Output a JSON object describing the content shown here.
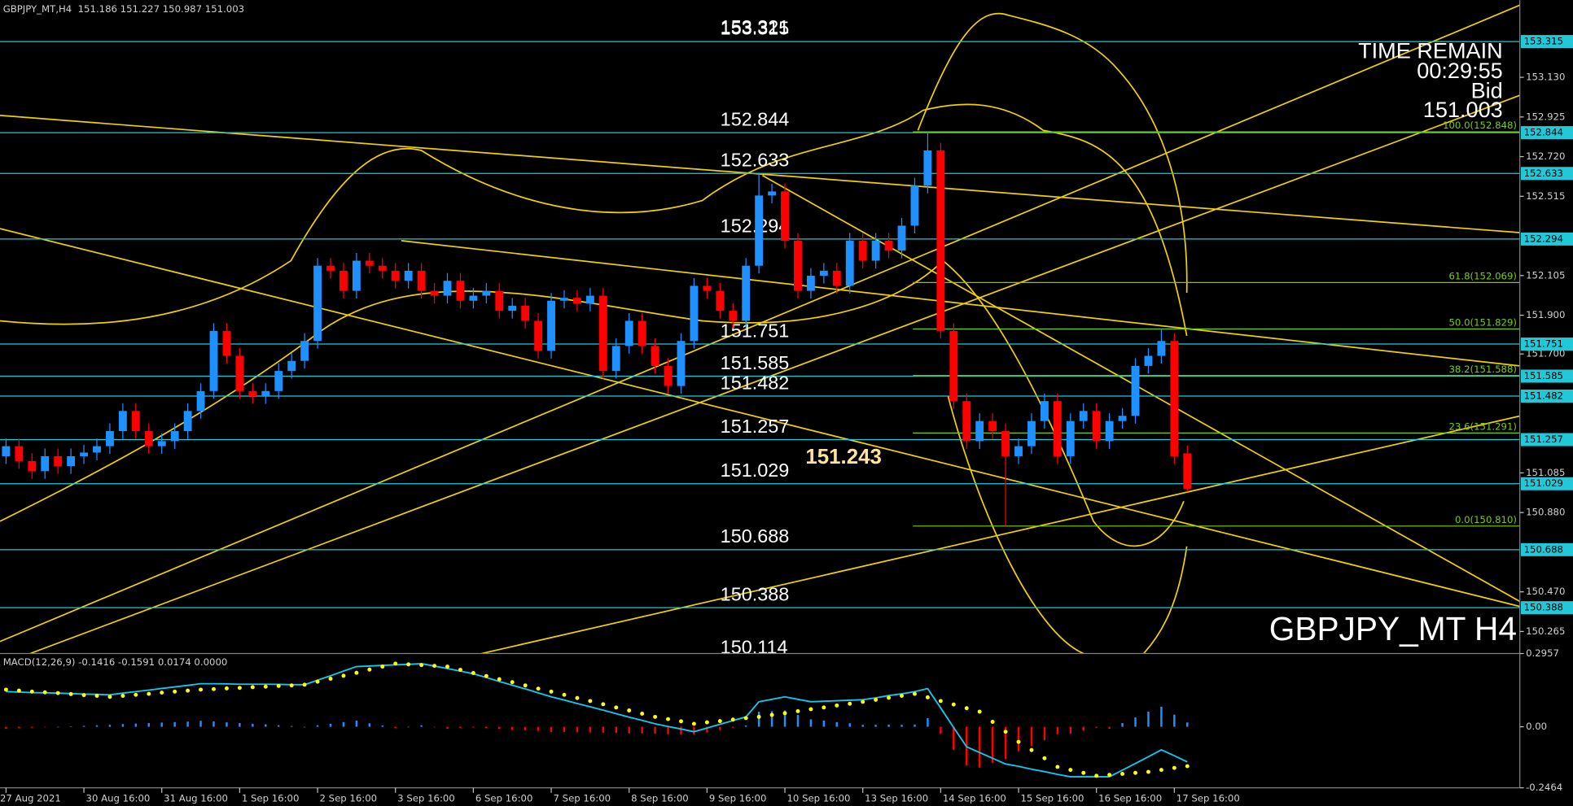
{
  "chart_data": [
    {
      "type": "candlestick",
      "title": "GBPJPY_MT,H4  151.186 151.227 150.987 151.003",
      "info": {
        "time_remain": "TIME REMAIN",
        "countdown": "00:29:55",
        "bid_label": "Bid",
        "bid": 151.003
      },
      "watermark": "GBPJPY_MT H4",
      "categories": [
        "27 Aug 2021",
        null,
        null,
        null,
        null,
        null,
        "30 Aug 16:00",
        null,
        null,
        null,
        null,
        null,
        "31 Aug 16:00",
        null,
        null,
        null,
        null,
        null,
        "1 Sep 16:00",
        null,
        null,
        null,
        null,
        null,
        "2 Sep 16:00",
        null,
        null,
        null,
        null,
        null,
        "3 Sep 16:00",
        null,
        null,
        null,
        null,
        null,
        "6 Sep 16:00",
        null,
        null,
        null,
        null,
        null,
        "7 Sep 16:00",
        null,
        null,
        null,
        null,
        null,
        "8 Sep 16:00",
        null,
        null,
        null,
        null,
        null,
        "9 Sep 16:00",
        null,
        null,
        null,
        null,
        null,
        "10 Sep 16:00",
        null,
        null,
        null,
        null,
        null,
        "13 Sep 16:00",
        null,
        null,
        null,
        null,
        null,
        "14 Sep 16:00",
        null,
        null,
        null,
        null,
        null,
        "15 Sep 16:00",
        null,
        null,
        null,
        null,
        null,
        "16 Sep 16:00",
        null,
        null,
        null,
        null,
        null,
        "17 Sep 16:00",
        null
      ],
      "open": [
        151.171,
        151.223,
        151.146,
        151.094,
        151.171,
        151.12,
        151.171,
        151.19,
        151.223,
        151.301,
        151.405,
        151.301,
        151.223,
        151.249,
        151.301,
        151.405,
        151.508,
        151.819,
        151.69,
        151.508,
        151.482,
        151.508,
        151.612,
        151.664,
        151.767,
        152.156,
        152.13,
        152.026,
        152.182,
        152.156,
        152.13,
        152.078,
        152.13,
        152.026,
        152.001,
        152.078,
        151.975,
        152.001,
        152.026,
        151.923,
        151.949,
        151.871,
        151.716,
        151.975,
        151.99,
        151.96,
        152.001,
        151.612,
        151.741,
        151.871,
        151.741,
        151.638,
        151.534,
        151.767,
        152.052,
        152.026,
        151.923,
        151.871,
        152.156,
        152.519,
        152.54,
        152.285,
        152.026,
        152.104,
        152.13,
        152.052,
        152.285,
        152.182,
        152.285,
        152.234,
        152.363,
        152.57,
        152.752,
        151.819,
        151.456,
        151.249,
        151.353,
        151.301,
        151.171,
        151.223,
        151.353,
        151.456,
        151.171,
        151.353,
        151.405,
        151.249,
        151.353,
        151.38,
        151.638,
        151.69,
        151.767,
        151.186
      ],
      "high": [
        151.263,
        151.263,
        151.186,
        151.211,
        151.211,
        151.211,
        151.23,
        151.263,
        151.341,
        151.445,
        151.445,
        151.341,
        151.289,
        151.341,
        151.445,
        151.548,
        151.859,
        151.859,
        151.73,
        151.548,
        151.548,
        151.652,
        151.704,
        151.807,
        152.196,
        152.196,
        152.17,
        152.222,
        152.222,
        152.196,
        152.17,
        152.17,
        152.17,
        152.066,
        152.118,
        152.118,
        152.041,
        152.066,
        152.066,
        151.989,
        151.989,
        151.911,
        152.015,
        152.03,
        152.03,
        152.041,
        152.041,
        151.781,
        151.911,
        151.911,
        151.781,
        151.678,
        151.807,
        152.092,
        152.092,
        152.066,
        151.963,
        152.196,
        152.633,
        152.58,
        152.58,
        152.325,
        152.144,
        152.17,
        152.17,
        152.325,
        152.325,
        152.325,
        152.325,
        152.403,
        152.61,
        152.848,
        152.792,
        151.859,
        151.496,
        151.393,
        151.393,
        151.341,
        151.263,
        151.393,
        151.496,
        151.496,
        151.393,
        151.445,
        151.445,
        151.393,
        151.42,
        151.678,
        151.73,
        151.829,
        151.807,
        151.227
      ],
      "low": [
        151.131,
        151.106,
        151.054,
        151.054,
        151.08,
        151.08,
        151.131,
        151.15,
        151.183,
        151.261,
        151.261,
        151.183,
        151.183,
        151.209,
        151.261,
        151.365,
        151.468,
        151.65,
        151.468,
        151.442,
        151.442,
        151.468,
        151.572,
        151.624,
        151.727,
        152.09,
        151.986,
        151.986,
        152.116,
        152.09,
        152.038,
        152.038,
        151.986,
        151.961,
        151.961,
        151.935,
        151.935,
        151.961,
        151.883,
        151.883,
        151.831,
        151.676,
        151.676,
        151.935,
        151.92,
        151.92,
        151.572,
        151.572,
        151.701,
        151.701,
        151.598,
        151.494,
        151.494,
        151.727,
        151.986,
        151.883,
        151.831,
        151.831,
        152.116,
        152.479,
        152.245,
        151.986,
        151.986,
        152.064,
        152.012,
        152.012,
        152.142,
        152.142,
        152.194,
        152.194,
        152.323,
        152.53,
        151.779,
        151.416,
        151.209,
        151.209,
        151.261,
        150.81,
        151.131,
        151.183,
        151.313,
        151.131,
        151.131,
        151.313,
        151.209,
        151.209,
        151.313,
        151.34,
        151.598,
        151.65,
        151.131,
        150.987
      ],
      "close": [
        151.223,
        151.146,
        151.094,
        151.171,
        151.12,
        151.171,
        151.19,
        151.223,
        151.301,
        151.405,
        151.301,
        151.223,
        151.249,
        151.301,
        151.405,
        151.508,
        151.819,
        151.69,
        151.508,
        151.482,
        151.508,
        151.612,
        151.664,
        151.767,
        152.156,
        152.13,
        152.026,
        152.182,
        152.156,
        152.13,
        152.078,
        152.13,
        152.026,
        152.001,
        152.078,
        151.975,
        152.001,
        152.026,
        151.923,
        151.949,
        151.871,
        151.716,
        151.975,
        151.99,
        151.96,
        152.001,
        151.612,
        151.741,
        151.871,
        151.741,
        151.638,
        151.534,
        151.767,
        152.052,
        152.026,
        151.923,
        151.871,
        152.156,
        152.519,
        152.54,
        152.285,
        152.026,
        152.104,
        152.13,
        152.052,
        152.285,
        152.182,
        152.285,
        152.234,
        152.363,
        152.57,
        152.752,
        151.819,
        151.456,
        151.249,
        151.353,
        151.301,
        151.171,
        151.223,
        151.353,
        151.456,
        151.171,
        151.353,
        151.405,
        151.249,
        151.353,
        151.38,
        151.638,
        151.69,
        151.767,
        151.171,
        151.003
      ],
      "up_color": "#1e90ff",
      "down_color": "#ff0000",
      "ylim": [
        150.151,
        153.529
      ],
      "yticks": [
        {
          "value": 153.13,
          "label": "153.130"
        },
        152.925,
        {
          "value": 152.72,
          "label": "152.720"
        },
        152.515,
        152.105,
        {
          "value": 151.9,
          "label": "151.900"
        },
        {
          "value": 151.7,
          "label": "151.700"
        },
        151.085,
        {
          "value": 150.88,
          "label": "150.880"
        },
        {
          "value": 150.47,
          "label": "150.470"
        },
        150.265
      ],
      "levels": [
        153.315,
        152.844,
        152.633,
        152.294,
        151.751,
        151.585,
        151.482,
        151.257,
        151.029,
        150.688,
        150.388
      ],
      "level_color": "#20c8d8",
      "extra_labels": [
        153.321,
        150.114
      ],
      "highlight_label": 151.243,
      "fibonacci": [
        {
          "value": 152.848,
          "label": "100.0(152.848)"
        },
        {
          "value": 152.069,
          "label": "61.8(152.069)"
        },
        {
          "value": 151.829,
          "label": "50.0(151.829)"
        },
        {
          "value": 151.588,
          "label": "38.2(151.588)"
        },
        {
          "value": 151.291,
          "label": "23.6(151.291)"
        },
        {
          "value": 150.81,
          "label": "0.0(150.810)"
        }
      ],
      "fib_color": "#7ccf00"
    },
    {
      "type": "macd",
      "title": "MACD(12,26,9) -0.1416 -0.1591 0.0174 0.0000",
      "macd": [
        0.142,
        0.14,
        0.138,
        0.137,
        0.136,
        0.134,
        0.132,
        0.131,
        0.129,
        0.136,
        0.142,
        0.148,
        0.155,
        0.161,
        0.167,
        0.174,
        0.174,
        0.173,
        0.172,
        0.172,
        0.172,
        0.171,
        0.17,
        0.17,
        0.188,
        0.206,
        0.225,
        0.243,
        0.245,
        0.248,
        0.25,
        0.252,
        0.255,
        0.245,
        0.235,
        0.225,
        0.214,
        0.199,
        0.183,
        0.168,
        0.153,
        0.137,
        0.121,
        0.108,
        0.094,
        0.081,
        0.067,
        0.053,
        0.039,
        0.026,
        0.012,
        0.001,
        -0.009,
        -0.02,
        -0.005,
        0.01,
        0.025,
        0.04,
        0.101,
        0.111,
        0.121,
        0.111,
        0.101,
        0.103,
        0.105,
        0.107,
        0.109,
        0.117,
        0.126,
        0.133,
        0.142,
        0.154,
        0.076,
        -0.003,
        -0.081,
        -0.104,
        -0.127,
        -0.15,
        -0.16,
        -0.171,
        -0.181,
        -0.192,
        -0.202,
        -0.202,
        -0.202,
        -0.202,
        -0.175,
        -0.148,
        -0.121,
        -0.093,
        -0.117,
        -0.1416
      ],
      "signal": [
        0.15,
        0.146,
        0.142,
        0.139,
        0.136,
        0.132,
        0.128,
        0.125,
        0.121,
        0.125,
        0.129,
        0.133,
        0.138,
        0.142,
        0.146,
        0.15,
        0.152,
        0.155,
        0.157,
        0.16,
        0.162,
        0.165,
        0.167,
        0.17,
        0.182,
        0.194,
        0.206,
        0.218,
        0.231,
        0.243,
        0.255,
        0.252,
        0.249,
        0.246,
        0.243,
        0.23,
        0.217,
        0.205,
        0.192,
        0.18,
        0.167,
        0.154,
        0.142,
        0.129,
        0.116,
        0.104,
        0.091,
        0.078,
        0.066,
        0.053,
        0.04,
        0.031,
        0.022,
        0.012,
        0.018,
        0.023,
        0.029,
        0.035,
        0.04,
        0.048,
        0.055,
        0.063,
        0.071,
        0.078,
        0.086,
        0.093,
        0.101,
        0.109,
        0.117,
        0.125,
        0.133,
        0.119,
        0.104,
        0.09,
        0.075,
        0.061,
        0.02,
        -0.02,
        -0.061,
        -0.094,
        -0.127,
        -0.162,
        -0.174,
        -0.186,
        -0.198,
        -0.194,
        -0.19,
        -0.186,
        -0.182,
        -0.174,
        -0.166,
        -0.1591
      ],
      "histogram": [
        -0.008,
        -0.006,
        -0.004,
        -0.002,
        0,
        0.002,
        0.004,
        0.006,
        0.008,
        0.011,
        0.013,
        0.015,
        0.017,
        0.019,
        0.021,
        0.024,
        0.022,
        0.018,
        0.015,
        0.012,
        0.01,
        0.006,
        0.003,
        0,
        0.006,
        0.012,
        0.019,
        0.025,
        0.014,
        0.005,
        -0.005,
        0,
        0.006,
        -0.001,
        -0.008,
        -0.005,
        -0.003,
        -0.006,
        -0.009,
        -0.012,
        -0.014,
        -0.017,
        -0.021,
        -0.021,
        -0.022,
        -0.023,
        -0.024,
        -0.025,
        -0.027,
        -0.027,
        -0.028,
        -0.03,
        -0.031,
        -0.032,
        -0.023,
        -0.013,
        -0.004,
        0.005,
        0.061,
        0.063,
        0.066,
        0.048,
        0.03,
        0.025,
        0.019,
        0.014,
        0.008,
        0.008,
        0.009,
        0.008,
        0.009,
        0.035,
        -0.028,
        -0.093,
        -0.156,
        -0.165,
        -0.147,
        -0.13,
        -0.099,
        -0.077,
        -0.054,
        -0.03,
        -0.028,
        -0.016,
        -0.004,
        -0.008,
        0.015,
        0.038,
        0.061,
        0.081,
        0.049,
        0.0174
      ],
      "line_color": "#10c8f0",
      "signal_color": "#ffff00",
      "hist_up_color": "#1e90ff",
      "hist_down_color": "#ff0000",
      "ylim": [
        -0.2464,
        0.2957
      ],
      "yticks": [
        0.2957,
        {
          "value": 0,
          "label": "0.00"
        },
        -0.2464
      ]
    }
  ]
}
